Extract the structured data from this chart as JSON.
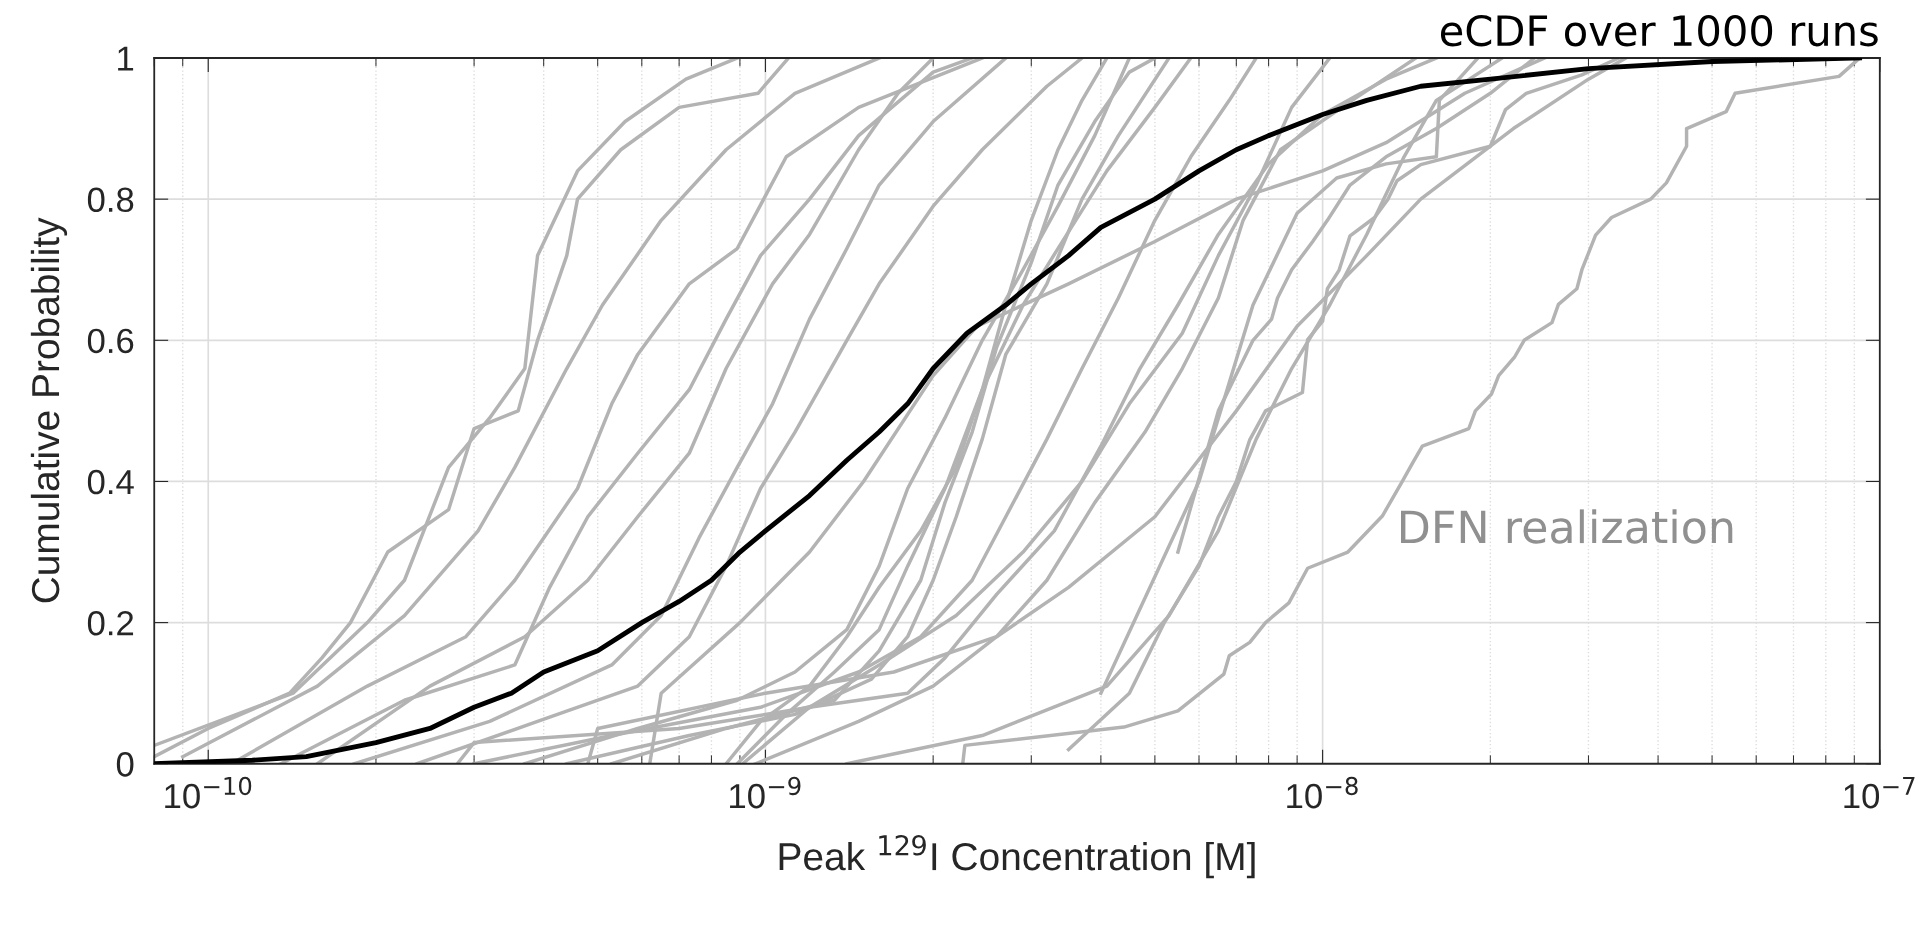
{
  "chart_data": {
    "type": "line",
    "xlabel": "Peak $^{129}$I Concentration [M]",
    "ylabel": "Cumulative Probability",
    "annotations": [
      "DFN realization"
    ],
    "log": "x",
    "grid": true,
    "line_style": "solid",
    "xlim": [
      8e-11,
      1e-07
    ],
    "ylim": [
      0,
      1
    ],
    "xticks": [
      {
        "value": 1e-10,
        "label": "10$^{−10}$"
      },
      {
        "value": 1e-09,
        "label": "10$^{−9}$"
      },
      {
        "value": 1e-08,
        "label": "10$^{−8}$"
      },
      {
        "value": 1e-07,
        "label": "10$^{−7}$"
      }
    ],
    "yticks": [
      0,
      0.2,
      0.4,
      0.6,
      0.8,
      1
    ],
    "series": [
      {
        "color": "#b3b3b3",
        "x": [
          8e-11,
          1e-10,
          1.4e-10,
          1.6e-10,
          1.8e-10,
          2.1e-10,
          2.7e-10,
          3e-10,
          3.6e-10,
          3.9e-10,
          4.4e-10,
          4.6e-10,
          5.5e-10,
          7e-10,
          9.7e-10,
          1.1e-09
        ],
        "values": [
          0.01,
          0.05,
          0.1,
          0.15,
          0.2,
          0.3,
          0.36,
          0.475,
          0.5,
          0.6,
          0.72,
          0.8,
          0.87,
          0.93,
          0.95,
          1
        ]
      },
      {
        "color": "#b3b3b3",
        "x": [
          8e-11,
          1.42e-10,
          1.93e-10,
          2.25e-10,
          2.7e-10,
          3.2e-10,
          3.7e-10,
          3.9e-10,
          4.6e-10,
          5.6e-10,
          7.2e-10,
          8.9e-10
        ],
        "values": [
          0.026,
          0.1,
          0.2,
          0.26,
          0.42,
          0.49,
          0.56,
          0.72,
          0.84,
          0.91,
          0.97,
          1
        ]
      },
      {
        "color": "#b3b3b3",
        "x": [
          9e-11,
          1.57e-10,
          2.25e-10,
          3.05e-10,
          3.55e-10,
          4.4e-10,
          5.1e-10,
          6.5e-10,
          8.5e-10,
          1.13e-09,
          1.6e-09
        ],
        "values": [
          0.01,
          0.11,
          0.21,
          0.33,
          0.42,
          0.56,
          0.65,
          0.77,
          0.87,
          0.95,
          1
        ]
      },
      {
        "color": "#b3b3b3",
        "x": [
          1.1e-10,
          1.93e-10,
          2.9e-10,
          3.55e-10,
          4.6e-10,
          5.3e-10,
          5.9e-10,
          7.3e-10,
          8.9e-10,
          1.09e-09,
          1.47e-09,
          2.45e-09
        ],
        "values": [
          0,
          0.11,
          0.18,
          0.26,
          0.39,
          0.51,
          0.58,
          0.68,
          0.73,
          0.86,
          0.93,
          1
        ]
      },
      {
        "color": "#b3b3b3",
        "x": [
          1.35e-10,
          2.25e-10,
          3.55e-10,
          4.1e-10,
          4.8e-10,
          5.9e-10,
          7.3e-10,
          8.5e-10,
          9.8e-10,
          1.2e-09,
          1.47e-09,
          2e-09,
          2.35e-09
        ],
        "values": [
          0,
          0.09,
          0.14,
          0.25,
          0.35,
          0.44,
          0.53,
          0.63,
          0.72,
          0.8,
          0.89,
          0.98,
          1
        ]
      },
      {
        "color": "#b3b3b3",
        "x": [
          1.57e-10,
          2.5e-10,
          3.7e-10,
          4.8e-10,
          5.9e-10,
          7.3e-10,
          8.5e-10,
          1.03e-09,
          1.2e-09,
          1.47e-09,
          1.73e-09,
          2e-09
        ],
        "values": [
          0,
          0.11,
          0.18,
          0.26,
          0.35,
          0.44,
          0.56,
          0.68,
          0.75,
          0.87,
          0.95,
          1
        ]
      },
      {
        "color": "#b3b3b3",
        "x": [
          1.83e-10,
          3.2e-10,
          5.3e-10,
          6.5e-10,
          7.6e-10,
          8.9e-10,
          1.03e-09,
          1.2e-09,
          1.4e-09,
          1.6e-09,
          2e-09,
          2.7e-09
        ],
        "values": [
          0,
          0.06,
          0.14,
          0.21,
          0.32,
          0.42,
          0.51,
          0.63,
          0.73,
          0.82,
          0.91,
          1
        ]
      },
      {
        "color": "#b3b3b3",
        "x": [
          2.37e-10,
          3.9e-10,
          5.9e-10,
          7.3e-10,
          8.5e-10,
          9.8e-10,
          1.13e-09,
          1.4e-09,
          1.6e-09,
          2e-09,
          2.45e-09,
          3.2e-09,
          3.7e-09
        ],
        "values": [
          0,
          0.06,
          0.11,
          0.18,
          0.28,
          0.39,
          0.47,
          0.6,
          0.68,
          0.79,
          0.87,
          0.96,
          1
        ]
      },
      {
        "color": "#b3b3b3",
        "x": [
          3e-10,
          5.3e-10,
          9.8e-10,
          1.47e-09,
          1.9e-09,
          2.35e-09,
          2.7e-09,
          3.2e-09,
          3.7e-09,
          4.3e-09,
          5e-09,
          5.8e-09,
          6.8e-09,
          7.6e-09
        ],
        "values": [
          0,
          0.04,
          0.08,
          0.13,
          0.18,
          0.26,
          0.35,
          0.46,
          0.56,
          0.66,
          0.77,
          0.86,
          0.94,
          1
        ]
      },
      {
        "color": "#b3b3b3",
        "x": [
          3.7e-10,
          5.9e-10,
          8.9e-10,
          1.13e-09,
          1.4e-09,
          1.6e-09,
          1.8e-09,
          2.1e-09,
          2.45e-09,
          2.9e-09,
          3.35e-09,
          3.9e-09,
          4.5e-09
        ],
        "values": [
          0,
          0.05,
          0.09,
          0.13,
          0.19,
          0.28,
          0.39,
          0.49,
          0.6,
          0.7,
          0.79,
          0.89,
          1
        ]
      },
      {
        "color": "#b3b3b3",
        "x": [
          4.4e-10,
          7.3e-10,
          1.13e-09,
          1.55e-09,
          1.8e-09,
          2e-09,
          2.2e-09,
          2.45e-09,
          2.7e-09,
          3.2e-09,
          3.7e-09,
          4.3e-09,
          5.3e-09
        ],
        "values": [
          0,
          0.04,
          0.07,
          0.12,
          0.18,
          0.26,
          0.35,
          0.46,
          0.58,
          0.68,
          0.8,
          0.89,
          1
        ]
      },
      {
        "color": "#b3b3b3",
        "x": [
          5.3e-10,
          8.5e-10,
          1.33e-09,
          1.6e-09,
          1.9e-09,
          2.1e-09,
          2.35e-09,
          2.6e-09,
          3e-09,
          3.35e-09,
          3.9e-09,
          4.5e-09,
          5e-09
        ],
        "values": [
          0,
          0.05,
          0.09,
          0.16,
          0.26,
          0.37,
          0.47,
          0.59,
          0.71,
          0.82,
          0.91,
          0.98,
          1
        ]
      },
      {
        "color": "#b3b3b3",
        "x": [
          8.5e-10,
          9.8e-10,
          1.2e-09,
          1.4e-09,
          1.6e-09,
          1.9e-09,
          2.2e-09,
          2.45e-09,
          2.9e-09,
          3.35e-09,
          4.1e-09,
          5e-09,
          5.8e-09
        ],
        "values": [
          0,
          0.06,
          0.11,
          0.18,
          0.25,
          0.33,
          0.42,
          0.53,
          0.65,
          0.73,
          0.84,
          0.93,
          1
        ]
      },
      {
        "color": "#b3b3b3",
        "x": [
          8.9e-10,
          1.09e-09,
          1.33e-09,
          1.6e-09,
          1.8e-09,
          2.1e-09,
          2.45e-09,
          2.7e-09,
          3e-09,
          3.35e-09,
          3.7e-09,
          4.1e-09
        ],
        "values": [
          0,
          0.07,
          0.13,
          0.19,
          0.28,
          0.39,
          0.53,
          0.65,
          0.77,
          0.87,
          0.94,
          1
        ]
      },
      {
        "color": "#b3b3b3",
        "x": [
          9.1e-10,
          1.2e-09,
          1.6e-09,
          2.2e-09,
          2.9e-09,
          3.7e-09,
          4.5e-09,
          5.6e-09,
          6.5e-09,
          7.6e-09,
          8.8e-09,
          1.03e-08
        ],
        "values": [
          0,
          0.08,
          0.14,
          0.21,
          0.3,
          0.4,
          0.51,
          0.61,
          0.72,
          0.82,
          0.93,
          1
        ]
      },
      {
        "color": "#b3b3b3",
        "x": [
          9.6e-10,
          1.47e-09,
          2e-09,
          2.6e-09,
          3.2e-09,
          3.9e-09,
          4.8e-09,
          5.6e-09,
          6.5e-09,
          7.2e-09,
          8.4e-09,
          1.13e-08,
          1.47e-08
        ],
        "values": [
          0,
          0.06,
          0.11,
          0.18,
          0.26,
          0.37,
          0.47,
          0.56,
          0.66,
          0.77,
          0.87,
          0.94,
          1
        ]
      },
      {
        "color": "#b3b3b3",
        "x": [
          1.4e-09,
          2.45e-09,
          4.1e-09,
          5.3e-09,
          6.5e-09,
          7.6e-09,
          8.8e-09,
          1.03e-08,
          1.2e-08,
          1.4e-08,
          1.6e-08,
          2.1e-08
        ],
        "values": [
          0,
          0.04,
          0.11,
          0.21,
          0.33,
          0.46,
          0.56,
          0.65,
          0.75,
          0.86,
          0.94,
          1
        ]
      },
      {
        "color": "#b3b3b3",
        "x": [
          2.26e-09,
          2.28e-09,
          4.4e-09,
          5.5e-09,
          6.65e-09,
          6.8e-09,
          7.4e-09,
          7.9e-09,
          8.7e-09,
          9.4e-09,
          1.11e-08,
          1.28e-08,
          1.39e-08,
          1.45e-08,
          1.51e-08,
          1.83e-08,
          1.88e-08,
          2.01e-08,
          2.07e-08,
          2.21e-08,
          2.3e-08,
          2.58e-08,
          2.65e-08,
          2.86e-08,
          2.92e-08,
          3.09e-08,
          3.3e-08,
          3.88e-08,
          4.14e-08,
          4.5e-08,
          4.5e-08,
          5.3e-08,
          5.5e-08,
          8.45e-08,
          9.2e-08
        ],
        "values": [
          0,
          0.026,
          0.052,
          0.075,
          0.127,
          0.153,
          0.172,
          0.2,
          0.228,
          0.277,
          0.3,
          0.351,
          0.4,
          0.426,
          0.45,
          0.475,
          0.5,
          0.524,
          0.55,
          0.576,
          0.6,
          0.625,
          0.651,
          0.673,
          0.7,
          0.749,
          0.774,
          0.8,
          0.823,
          0.875,
          0.9,
          0.924,
          0.95,
          0.974,
          1
        ]
      },
      {
        "color": "#b3b3b3",
        "x": [
          3.5e-09,
          4.5e-09,
          5.2e-09,
          6e-09,
          6.5e-09,
          7e-09,
          7.4e-09,
          7.9e-09,
          9.2e-09,
          9.4e-09,
          1e-08,
          1.02e-08,
          1.07e-08,
          1.12e-08,
          1.24e-08,
          1.31e-08,
          1.36e-08,
          1.5e-08,
          2e-08,
          2.13e-08,
          2.32e-08,
          2.92e-08,
          3.4e-08
        ],
        "values": [
          0.02,
          0.1,
          0.2,
          0.28,
          0.35,
          0.4,
          0.459,
          0.5,
          0.526,
          0.601,
          0.627,
          0.673,
          0.699,
          0.748,
          0.774,
          0.8,
          0.826,
          0.849,
          0.875,
          0.927,
          0.95,
          0.976,
          1
        ]
      },
      {
        "color": "#b3b3b3",
        "x": [
          5.5e-09,
          6.5e-09,
          7.5e-09,
          8.1e-09,
          8.3e-09,
          8.8e-09,
          9.6e-09,
          1.02e-08,
          1.12e-08,
          1.3e-08,
          1.6e-08,
          2e-08,
          2.4e-08
        ],
        "values": [
          0.3,
          0.5,
          0.6,
          0.63,
          0.66,
          0.7,
          0.74,
          0.77,
          0.82,
          0.86,
          0.9,
          0.95,
          1
        ]
      },
      {
        "color": "#b3b3b3",
        "x": [
          4e-09,
          6e-09,
          7.5e-09,
          9e-09,
          1.06e-08,
          1.3e-08,
          1.6e-08,
          1.62e-08,
          1.9e-08
        ],
        "values": [
          0.1,
          0.4,
          0.65,
          0.78,
          0.83,
          0.85,
          0.86,
          0.94,
          1
        ]
      },
      {
        "color": "#b3b3b3",
        "x": [
          4.8e-10,
          5e-10,
          1e-09,
          1.7e-09,
          2.6e-09,
          3.5e-09,
          5e-09,
          7e-09,
          9e-09,
          1.2e-08,
          1.5e-08,
          2.2e-08,
          3e-08,
          3.5e-08
        ],
        "values": [
          0,
          0.05,
          0.1,
          0.13,
          0.18,
          0.25,
          0.35,
          0.5,
          0.62,
          0.72,
          0.8,
          0.9,
          0.97,
          1
        ]
      },
      {
        "color": "#b3b3b3",
        "x": [
          2.8e-10,
          3e-10,
          7e-10,
          1.2e-09,
          1.8e-09,
          2.1e-09,
          2.6e-09,
          3.3e-09,
          4e-09,
          4.7e-09,
          5.5e-09,
          6.5e-09,
          8e-09,
          1e-08,
          1.3e-08,
          1.6e-08
        ],
        "values": [
          0,
          0.03,
          0.05,
          0.08,
          0.1,
          0.15,
          0.24,
          0.33,
          0.45,
          0.56,
          0.65,
          0.75,
          0.85,
          0.92,
          0.97,
          1
        ]
      },
      {
        "color": "#b3b3b3",
        "x": [
          6.2e-10,
          6.5e-10,
          9e-10,
          1.2e-09,
          1.5e-09,
          2e-09,
          2.4e-09,
          3.5e-09,
          5e-09,
          7e-09,
          1e-08,
          1.3e-08,
          1.8e-08,
          2.5e-08
        ],
        "values": [
          0,
          0.1,
          0.2,
          0.3,
          0.4,
          0.55,
          0.62,
          0.68,
          0.74,
          0.8,
          0.84,
          0.88,
          0.95,
          1
        ]
      },
      {
        "name": "eCDF over 1000 runs",
        "color": "#000000",
        "x": [
          8e-11,
          1.2e-10,
          1.5e-10,
          2e-10,
          2.5e-10,
          3e-10,
          3.5e-10,
          4e-10,
          5e-10,
          6e-10,
          7e-10,
          8e-10,
          9e-10,
          1e-09,
          1.2e-09,
          1.4e-09,
          1.6e-09,
          1.8e-09,
          2e-09,
          2.3e-09,
          2.7e-09,
          3e-09,
          3.5e-09,
          4e-09,
          5e-09,
          6e-09,
          7e-09,
          8e-09,
          1e-08,
          1.2e-08,
          1.5e-08,
          2e-08,
          3e-08,
          5e-08,
          9.2e-08
        ],
        "values": [
          0,
          0.005,
          0.01,
          0.03,
          0.05,
          0.08,
          0.1,
          0.13,
          0.16,
          0.2,
          0.23,
          0.26,
          0.3,
          0.33,
          0.38,
          0.43,
          0.47,
          0.51,
          0.56,
          0.61,
          0.65,
          0.68,
          0.72,
          0.76,
          0.8,
          0.84,
          0.87,
          0.89,
          0.92,
          0.94,
          0.96,
          0.97,
          0.985,
          0.995,
          1
        ]
      }
    ]
  }
}
